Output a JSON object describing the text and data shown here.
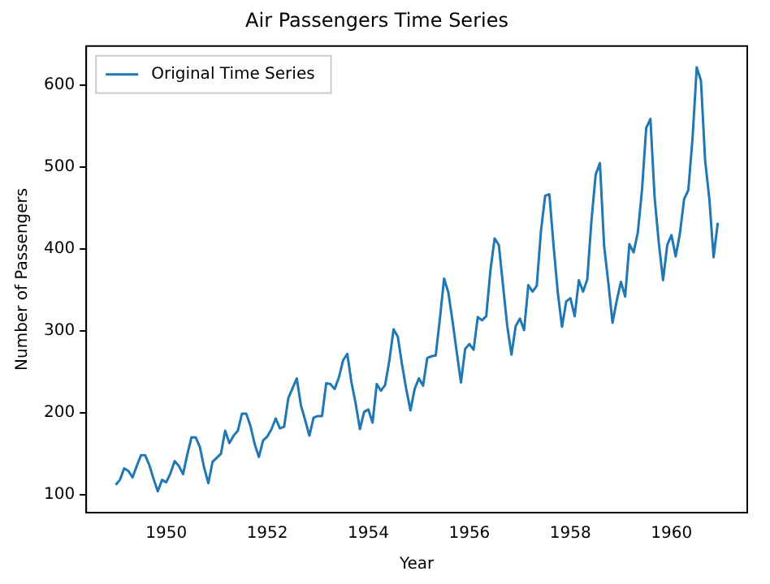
{
  "chart_data": {
    "type": "line",
    "title": "Air Passengers Time Series",
    "xlabel": "Year",
    "ylabel": "Number of Passengers",
    "x": [
      "1949-01",
      "1949-02",
      "1949-03",
      "1949-04",
      "1949-05",
      "1949-06",
      "1949-07",
      "1949-08",
      "1949-09",
      "1949-10",
      "1949-11",
      "1949-12",
      "1950-01",
      "1950-02",
      "1950-03",
      "1950-04",
      "1950-05",
      "1950-06",
      "1950-07",
      "1950-08",
      "1950-09",
      "1950-10",
      "1950-11",
      "1950-12",
      "1951-01",
      "1951-02",
      "1951-03",
      "1951-04",
      "1951-05",
      "1951-06",
      "1951-07",
      "1951-08",
      "1951-09",
      "1951-10",
      "1951-11",
      "1951-12",
      "1952-01",
      "1952-02",
      "1952-03",
      "1952-04",
      "1952-05",
      "1952-06",
      "1952-07",
      "1952-08",
      "1952-09",
      "1952-10",
      "1952-11",
      "1952-12",
      "1953-01",
      "1953-02",
      "1953-03",
      "1953-04",
      "1953-05",
      "1953-06",
      "1953-07",
      "1953-08",
      "1953-09",
      "1953-10",
      "1953-11",
      "1953-12",
      "1954-01",
      "1954-02",
      "1954-03",
      "1954-04",
      "1954-05",
      "1954-06",
      "1954-07",
      "1954-08",
      "1954-09",
      "1954-10",
      "1954-11",
      "1954-12",
      "1955-01",
      "1955-02",
      "1955-03",
      "1955-04",
      "1955-05",
      "1955-06",
      "1955-07",
      "1955-08",
      "1955-09",
      "1955-10",
      "1955-11",
      "1955-12",
      "1956-01",
      "1956-02",
      "1956-03",
      "1956-04",
      "1956-05",
      "1956-06",
      "1956-07",
      "1956-08",
      "1956-09",
      "1956-10",
      "1956-11",
      "1956-12",
      "1957-01",
      "1957-02",
      "1957-03",
      "1957-04",
      "1957-05",
      "1957-06",
      "1957-07",
      "1957-08",
      "1957-09",
      "1957-10",
      "1957-11",
      "1957-12",
      "1958-01",
      "1958-02",
      "1958-03",
      "1958-04",
      "1958-05",
      "1958-06",
      "1958-07",
      "1958-08",
      "1958-09",
      "1958-10",
      "1958-11",
      "1958-12",
      "1959-01",
      "1959-02",
      "1959-03",
      "1959-04",
      "1959-05",
      "1959-06",
      "1959-07",
      "1959-08",
      "1959-09",
      "1959-10",
      "1959-11",
      "1959-12",
      "1960-01",
      "1960-02",
      "1960-03",
      "1960-04",
      "1960-05",
      "1960-06",
      "1960-07",
      "1960-08",
      "1960-09",
      "1960-10",
      "1960-11",
      "1960-12"
    ],
    "series": [
      {
        "name": "Original Time Series",
        "color": "#1f77b4",
        "values": [
          112,
          118,
          132,
          129,
          121,
          135,
          148,
          148,
          136,
          119,
          104,
          118,
          115,
          126,
          141,
          135,
          125,
          149,
          170,
          170,
          158,
          133,
          114,
          140,
          145,
          150,
          178,
          163,
          172,
          178,
          199,
          199,
          184,
          162,
          146,
          166,
          171,
          180,
          193,
          181,
          183,
          218,
          230,
          242,
          209,
          191,
          172,
          194,
          196,
          196,
          236,
          235,
          229,
          243,
          264,
          272,
          237,
          211,
          180,
          201,
          204,
          188,
          235,
          227,
          234,
          264,
          302,
          293,
          259,
          229,
          203,
          229,
          242,
          233,
          267,
          269,
          270,
          315,
          364,
          347,
          312,
          274,
          237,
          278,
          284,
          277,
          317,
          313,
          318,
          374,
          413,
          405,
          355,
          306,
          271,
          306,
          315,
          301,
          356,
          348,
          355,
          422,
          465,
          467,
          404,
          347,
          305,
          336,
          340,
          318,
          362,
          348,
          363,
          435,
          491,
          505,
          404,
          359,
          310,
          337,
          360,
          342,
          406,
          396,
          420,
          472,
          548,
          559,
          463,
          407,
          362,
          405,
          417,
          391,
          419,
          461,
          472,
          535,
          622,
          606,
          508,
          461,
          390,
          432
        ]
      }
    ],
    "xlim": [
      "1948-06",
      "1961-07"
    ],
    "xticks": [
      "1950",
      "1952",
      "1954",
      "1956",
      "1958",
      "1960"
    ],
    "ylim": [
      78,
      648
    ],
    "yticks": [
      100,
      200,
      300,
      400,
      500,
      600
    ],
    "legend": "top left",
    "grid": false,
    "marker": "none",
    "line_style": "solid"
  }
}
